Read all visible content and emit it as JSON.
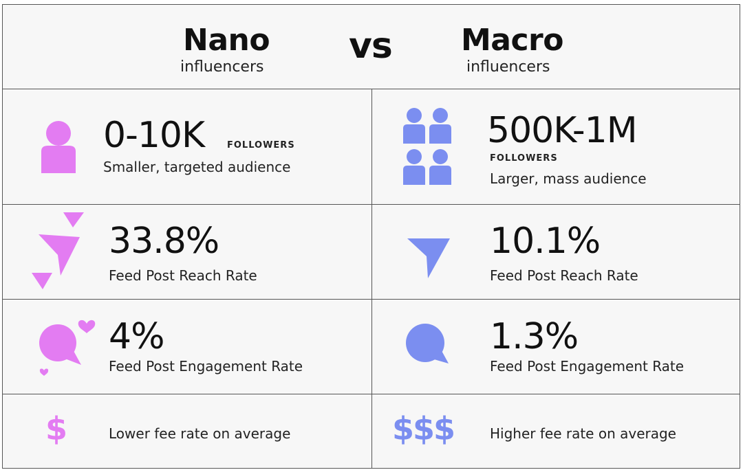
{
  "header": {
    "left_title": "Nano",
    "left_subtitle": "influencers",
    "vs": "vs",
    "right_title": "Macro",
    "right_subtitle": "influencers"
  },
  "colors": {
    "nano_accent": "#e37cf2",
    "macro_accent": "#7b8ef0",
    "border": "#555555"
  },
  "rows": {
    "followers": {
      "nano": {
        "value": "0-10K",
        "unit": "FOLLOWERS",
        "desc": "Smaller, targeted audience",
        "icon": "person-icon"
      },
      "macro": {
        "value": "500K-1M",
        "unit": "FOLLOWERS",
        "desc": "Larger, mass audience",
        "icon": "group-people-icon"
      }
    },
    "reach": {
      "nano": {
        "value": "33.8%",
        "desc": "Feed Post Reach Rate",
        "icon": "paper-planes-icon"
      },
      "macro": {
        "value": "10.1%",
        "desc": "Feed Post Reach Rate",
        "icon": "paper-plane-icon"
      }
    },
    "engagement": {
      "nano": {
        "value": "4%",
        "desc": "Feed Post Engagement Rate",
        "icon": "chat-bubble-hearts-icon"
      },
      "macro": {
        "value": "1.3%",
        "desc": "Feed Post Engagement Rate",
        "icon": "chat-bubble-icon"
      }
    },
    "fee": {
      "nano": {
        "symbol": "$",
        "desc": "Lower fee rate on average",
        "icon": "dollar-icon"
      },
      "macro": {
        "symbol": "$$$",
        "desc": "Higher fee rate on average",
        "icon": "triple-dollar-icon"
      }
    }
  }
}
